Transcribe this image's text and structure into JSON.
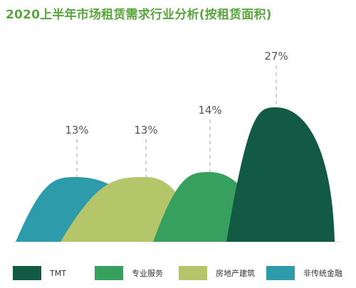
{
  "title": "2020上半年市场租赁需求行业分析(按租赁面积)",
  "chart_data": {
    "type": "area",
    "title": "2020上半年市场租赁需求行业分析(按租赁面积)",
    "unit": "%",
    "series": [
      {
        "name": "非传统金融",
        "value": 13,
        "label": "13%",
        "color": "#2e9bab"
      },
      {
        "name": "房地产建筑",
        "value": 13,
        "label": "13%",
        "color": "#b4c56a"
      },
      {
        "name": "专业服务",
        "value": 14,
        "label": "14%",
        "color": "#37a05f"
      },
      {
        "name": "TMT",
        "value": 27,
        "label": "27%",
        "color": "#125a43"
      }
    ],
    "legend_order": [
      "TMT",
      "专业服务",
      "房地产建筑",
      "非传统金融"
    ],
    "legend_position": "bottom"
  }
}
